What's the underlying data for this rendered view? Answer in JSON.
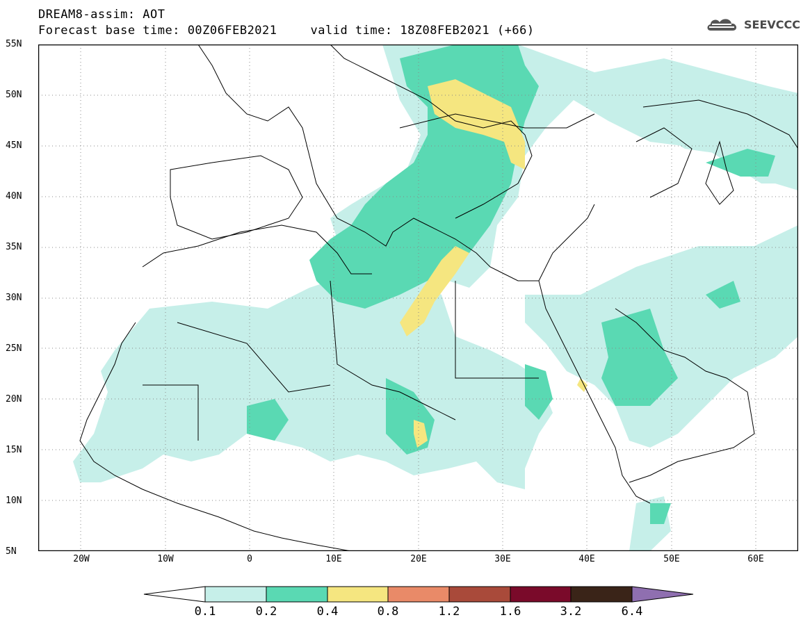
{
  "title": {
    "line1": "DREAM8-assim: AOT",
    "base_time": "Forecast base time: 00Z06FEB2021",
    "valid_time": "valid time: 18Z08FEB2021 (+66)"
  },
  "logo": {
    "text": "SEEVCCC",
    "icon": "cloud-icon"
  },
  "axes": {
    "lat_labels": [
      "55N",
      "50N",
      "45N",
      "40N",
      "35N",
      "30N",
      "25N",
      "20N",
      "15N",
      "10N",
      "5N"
    ],
    "lon_labels": [
      "20W",
      "10W",
      "0",
      "10E",
      "20E",
      "30E",
      "40E",
      "50E",
      "60E"
    ]
  },
  "colorbar": {
    "labels": [
      "0.1",
      "0.2",
      "0.4",
      "0.8",
      "1.2",
      "1.6",
      "3.2",
      "6.4"
    ],
    "colors": [
      "#ffffff",
      "#c6efe9",
      "#5ad9b3",
      "#f5e680",
      "#e98a68",
      "#a94a3a",
      "#7a0a2a",
      "#3a2418",
      "#8f6fb0"
    ]
  },
  "palette": {
    "low": "#c6efe9",
    "mid": "#5ad9b3",
    "high": "#f5e680"
  }
}
